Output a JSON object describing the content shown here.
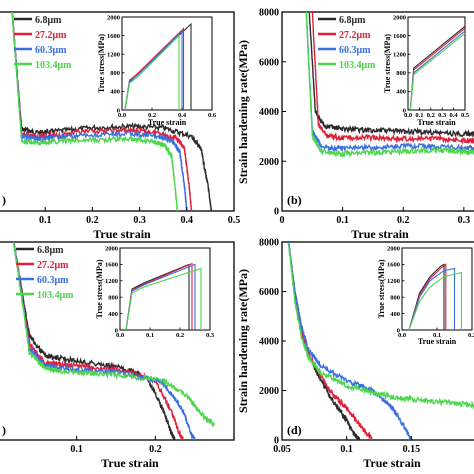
{
  "chart_data": [
    {
      "type": "line",
      "panel": "a",
      "xlabel": "True strain",
      "ylabel": "",
      "xlim": [
        0.0,
        0.5
      ],
      "ylim": [
        0,
        8000
      ],
      "xticks": [
        "0.1",
        "0.2",
        "0.3",
        "0.4",
        "0.5"
      ],
      "yticks": [],
      "series": [
        {
          "name": "6.8μm",
          "color": "#2b2b2b",
          "x": [
            0.03,
            0.05,
            0.08,
            0.12,
            0.2,
            0.28,
            0.35,
            0.41,
            0.43,
            0.445,
            0.452
          ],
          "y": [
            8000,
            3300,
            3150,
            3200,
            3350,
            3400,
            3350,
            3000,
            2500,
            1000,
            0
          ]
        },
        {
          "name": "27.2μm",
          "color": "#e0203a",
          "x": [
            0.03,
            0.05,
            0.08,
            0.12,
            0.2,
            0.28,
            0.34,
            0.38,
            0.395,
            0.405,
            0.41
          ],
          "y": [
            8000,
            3100,
            3000,
            3050,
            3200,
            3250,
            3150,
            2900,
            2500,
            1000,
            0
          ]
        },
        {
          "name": "60.3μm",
          "color": "#3a6fe0",
          "x": [
            0.03,
            0.05,
            0.08,
            0.12,
            0.2,
            0.28,
            0.34,
            0.37,
            0.385,
            0.395,
            0.4
          ],
          "y": [
            8000,
            3000,
            2900,
            2950,
            3050,
            3100,
            3000,
            2800,
            2400,
            1000,
            0
          ]
        },
        {
          "name": "103.4μm",
          "color": "#4cd64c",
          "x": [
            0.03,
            0.05,
            0.08,
            0.12,
            0.2,
            0.28,
            0.33,
            0.355,
            0.368,
            0.375,
            0.38
          ],
          "y": [
            8000,
            2800,
            2750,
            2800,
            2850,
            2900,
            2800,
            2600,
            2200,
            1000,
            0
          ]
        }
      ],
      "inset": {
        "xlabel": "True strain",
        "ylabel": "True stress(MPa)",
        "xlim": [
          0.0,
          0.6
        ],
        "ylim": [
          0,
          2000
        ],
        "xticks": [
          "0.0",
          "0.2",
          "0.4",
          "0.6"
        ],
        "yticks": [
          "0",
          "400",
          "800",
          "1200",
          "1600",
          "2000"
        ],
        "series": [
          {
            "name": "6.8μm",
            "color": "#2b2b2b",
            "x": [
              0.02,
              0.05,
              0.1,
              0.46,
              0.46
            ],
            "y": [
              0,
              600,
              750,
              1850,
              0
            ]
          },
          {
            "name": "27.2μm",
            "color": "#e0203a",
            "x": [
              0.02,
              0.05,
              0.1,
              0.41,
              0.41
            ],
            "y": [
              0,
              640,
              770,
              1750,
              0
            ]
          },
          {
            "name": "60.3μm",
            "color": "#3a6fe0",
            "x": [
              0.02,
              0.05,
              0.1,
              0.4,
              0.4
            ],
            "y": [
              0,
              620,
              740,
              1690,
              0
            ]
          },
          {
            "name": "103.4μm",
            "color": "#4cd64c",
            "x": [
              0.02,
              0.05,
              0.1,
              0.38,
              0.38
            ],
            "y": [
              0,
              580,
              700,
              1600,
              0
            ]
          }
        ]
      }
    },
    {
      "type": "line",
      "panel": "b",
      "xlabel": "True strain",
      "ylabel": "Strain hardening rate(MPa)",
      "xlim": [
        0.0,
        0.32
      ],
      "ylim": [
        0,
        8000
      ],
      "xticks": [
        "0",
        "0.1",
        "0.2",
        "0.3"
      ],
      "yticks": [
        "0",
        "2000",
        "4000",
        "6000",
        "8000"
      ],
      "series": [
        {
          "name": "6.8μm",
          "color": "#2b2b2b",
          "x": [
            0.045,
            0.055,
            0.07,
            0.1,
            0.15,
            0.2,
            0.25,
            0.3,
            0.32
          ],
          "y": [
            8000,
            4000,
            3400,
            3300,
            3250,
            3200,
            3150,
            3100,
            3100
          ]
        },
        {
          "name": "27.2μm",
          "color": "#e0203a",
          "x": [
            0.05,
            0.06,
            0.075,
            0.1,
            0.15,
            0.2,
            0.25,
            0.3,
            0.32
          ],
          "y": [
            8000,
            3500,
            3000,
            2950,
            2950,
            2900,
            2900,
            2850,
            2800
          ]
        },
        {
          "name": "60.3μm",
          "color": "#3a6fe0",
          "x": [
            0.04,
            0.05,
            0.065,
            0.1,
            0.15,
            0.2,
            0.25,
            0.3,
            0.32
          ],
          "y": [
            8000,
            3200,
            2600,
            2500,
            2550,
            2600,
            2600,
            2550,
            2500
          ]
        },
        {
          "name": "103.4μm",
          "color": "#4cd64c",
          "x": [
            0.04,
            0.05,
            0.065,
            0.1,
            0.15,
            0.2,
            0.25,
            0.3,
            0.32
          ],
          "y": [
            8000,
            3000,
            2400,
            2300,
            2350,
            2400,
            2450,
            2400,
            2350
          ]
        }
      ],
      "inset": {
        "xlabel": "True strain",
        "ylabel": "True stress(MPa)",
        "xlim": [
          0.0,
          0.5
        ],
        "ylim": [
          0,
          2000
        ],
        "xticks": [
          "0.0",
          "0.1",
          "0.2",
          "0.3",
          "0.4",
          "0.5"
        ],
        "yticks": [
          "0",
          "400",
          "800",
          "1200",
          "1600",
          "2000"
        ],
        "series": [
          {
            "name": "6.8μm",
            "color": "#2b2b2b",
            "x": [
              0.02,
              0.05,
              0.1,
              0.5
            ],
            "y": [
              0,
              900,
              1000,
              1800
            ]
          },
          {
            "name": "27.2μm",
            "color": "#e0203a",
            "x": [
              0.02,
              0.05,
              0.1,
              0.5
            ],
            "y": [
              0,
              860,
              960,
              1760
            ]
          },
          {
            "name": "60.3μm",
            "color": "#3a6fe0",
            "x": [
              0.02,
              0.05,
              0.1,
              0.5
            ],
            "y": [
              0,
              800,
              900,
              1700
            ]
          },
          {
            "name": "103.4μm",
            "color": "#4cd64c",
            "x": [
              0.02,
              0.05,
              0.1,
              0.5
            ],
            "y": [
              0,
              760,
              860,
              1650
            ]
          }
        ]
      }
    },
    {
      "type": "line",
      "panel": "c",
      "xlabel": "True strain",
      "ylabel": "",
      "xlim": [
        0.0,
        0.3
      ],
      "ylim": [
        0,
        8000
      ],
      "xticks": [
        "0.1",
        "0.2"
      ],
      "yticks": [],
      "series": [
        {
          "name": "6.8μm",
          "color": "#2b2b2b",
          "x": [
            0.02,
            0.04,
            0.06,
            0.08,
            0.12,
            0.16,
            0.19,
            0.21,
            0.22,
            0.225
          ],
          "y": [
            8000,
            4200,
            3400,
            3300,
            3100,
            2900,
            2500,
            1200,
            300,
            0
          ]
        },
        {
          "name": "27.2μm",
          "color": "#e0203a",
          "x": [
            0.02,
            0.04,
            0.06,
            0.08,
            0.12,
            0.16,
            0.2,
            0.22,
            0.23,
            0.235
          ],
          "y": [
            8000,
            3900,
            3100,
            3050,
            2950,
            2800,
            2400,
            1200,
            300,
            0
          ]
        },
        {
          "name": "60.3μm",
          "color": "#3a6fe0",
          "x": [
            0.02,
            0.04,
            0.06,
            0.08,
            0.12,
            0.16,
            0.21,
            0.235,
            0.245,
            0.25
          ],
          "y": [
            8000,
            3700,
            3000,
            2900,
            2800,
            2700,
            2300,
            1200,
            300,
            0
          ]
        },
        {
          "name": "103.4μm",
          "color": "#4cd64c",
          "x": [
            0.02,
            0.04,
            0.06,
            0.08,
            0.12,
            0.16,
            0.21,
            0.24,
            0.26,
            0.275
          ],
          "y": [
            8000,
            3500,
            2900,
            2800,
            2700,
            2600,
            2400,
            1800,
            1000,
            600
          ]
        }
      ],
      "inset": {
        "xlabel": "",
        "ylabel": "True stress(MPa)",
        "xlim": [
          0.0,
          0.3
        ],
        "ylim": [
          0,
          2000
        ],
        "xticks": [
          "0.0",
          "0.1",
          "0.2",
          "0.3"
        ],
        "yticks": [
          "0",
          "400",
          "800",
          "1200",
          "1600",
          "2000"
        ],
        "series": [
          {
            "name": "6.8μm",
            "color": "#2b2b2b",
            "x": [
              0.02,
              0.04,
              0.08,
              0.23,
              0.23
            ],
            "y": [
              0,
              1000,
              1150,
              1600,
              0
            ]
          },
          {
            "name": "27.2μm",
            "color": "#e0203a",
            "x": [
              0.02,
              0.04,
              0.08,
              0.24,
              0.24
            ],
            "y": [
              0,
              980,
              1120,
              1620,
              0
            ]
          },
          {
            "name": "60.3μm",
            "color": "#3a6fe0",
            "x": [
              0.02,
              0.04,
              0.08,
              0.25,
              0.25
            ],
            "y": [
              0,
              950,
              1100,
              1600,
              0
            ]
          },
          {
            "name": "103.4μm",
            "color": "#4cd64c",
            "x": [
              0.02,
              0.04,
              0.08,
              0.27,
              0.27
            ],
            "y": [
              0,
              900,
              1050,
              1500,
              0
            ]
          }
        ]
      }
    },
    {
      "type": "line",
      "panel": "d",
      "xlabel": "True strain",
      "ylabel": "Strain hardening rate(MPa)",
      "xlim": [
        0.05,
        0.2
      ],
      "ylim": [
        0,
        8000
      ],
      "xticks": [
        "0.05",
        "0.1",
        "0.15"
      ],
      "yticks": [
        "0",
        "2000",
        "4000",
        "6000",
        "8000"
      ],
      "series": [
        {
          "name": "6.8μm",
          "color": "#2b2b2b",
          "x": [
            0.055,
            0.06,
            0.065,
            0.07,
            0.08,
            0.09,
            0.1,
            0.105,
            0.11
          ],
          "y": [
            8000,
            6000,
            4500,
            3500,
            2400,
            1500,
            800,
            300,
            0
          ]
        },
        {
          "name": "27.2μm",
          "color": "#e0203a",
          "x": [
            0.055,
            0.06,
            0.065,
            0.07,
            0.08,
            0.09,
            0.1,
            0.11,
            0.12
          ],
          "y": [
            8000,
            5800,
            4400,
            3500,
            2600,
            1800,
            1300,
            600,
            0
          ]
        },
        {
          "name": "60.3μm",
          "color": "#3a6fe0",
          "x": [
            0.055,
            0.06,
            0.065,
            0.07,
            0.08,
            0.1,
            0.12,
            0.135,
            0.145,
            0.15
          ],
          "y": [
            8000,
            6000,
            4600,
            3700,
            3000,
            2400,
            2000,
            1300,
            500,
            0
          ]
        },
        {
          "name": "103.4μm",
          "color": "#4cd64c",
          "x": [
            0.055,
            0.06,
            0.065,
            0.07,
            0.08,
            0.1,
            0.12,
            0.14,
            0.16,
            0.18,
            0.2
          ],
          "y": [
            8000,
            5600,
            4200,
            3400,
            2700,
            2200,
            1900,
            1700,
            1600,
            1500,
            1400
          ]
        }
      ],
      "inset": {
        "xlabel": "True strain",
        "ylabel": "True stress(MPa)",
        "xlim": [
          0.0,
          0.2
        ],
        "ylim": [
          0,
          2000
        ],
        "xticks": [
          "0.0",
          "0.1",
          "0.2"
        ],
        "yticks": [
          "0",
          "400",
          "800",
          "1200",
          "1600",
          "2000"
        ],
        "series": [
          {
            "name": "6.8μm",
            "color": "#2b2b2b",
            "x": [
              0.02,
              0.05,
              0.08,
              0.11,
              0.12,
              0.12
            ],
            "y": [
              0,
              900,
              1300,
              1550,
              1600,
              0
            ]
          },
          {
            "name": "27.2μm",
            "color": "#e0203a",
            "x": [
              0.02,
              0.05,
              0.08,
              0.11,
              0.125,
              0.125
            ],
            "y": [
              0,
              850,
              1250,
              1500,
              1600,
              0
            ]
          },
          {
            "name": "60.3μm",
            "color": "#3a6fe0",
            "x": [
              0.02,
              0.05,
              0.08,
              0.12,
              0.15,
              0.15
            ],
            "y": [
              0,
              800,
              1200,
              1450,
              1500,
              0
            ]
          },
          {
            "name": "103.4μm",
            "color": "#4cd64c",
            "x": [
              0.02,
              0.05,
              0.08,
              0.12,
              0.17,
              0.17
            ],
            "y": [
              0,
              700,
              1050,
              1300,
              1400,
              0
            ]
          }
        ]
      }
    }
  ],
  "panel_labels": [
    "(b)",
    "(d)"
  ],
  "partial_labels": [
    ")",
    ")"
  ]
}
